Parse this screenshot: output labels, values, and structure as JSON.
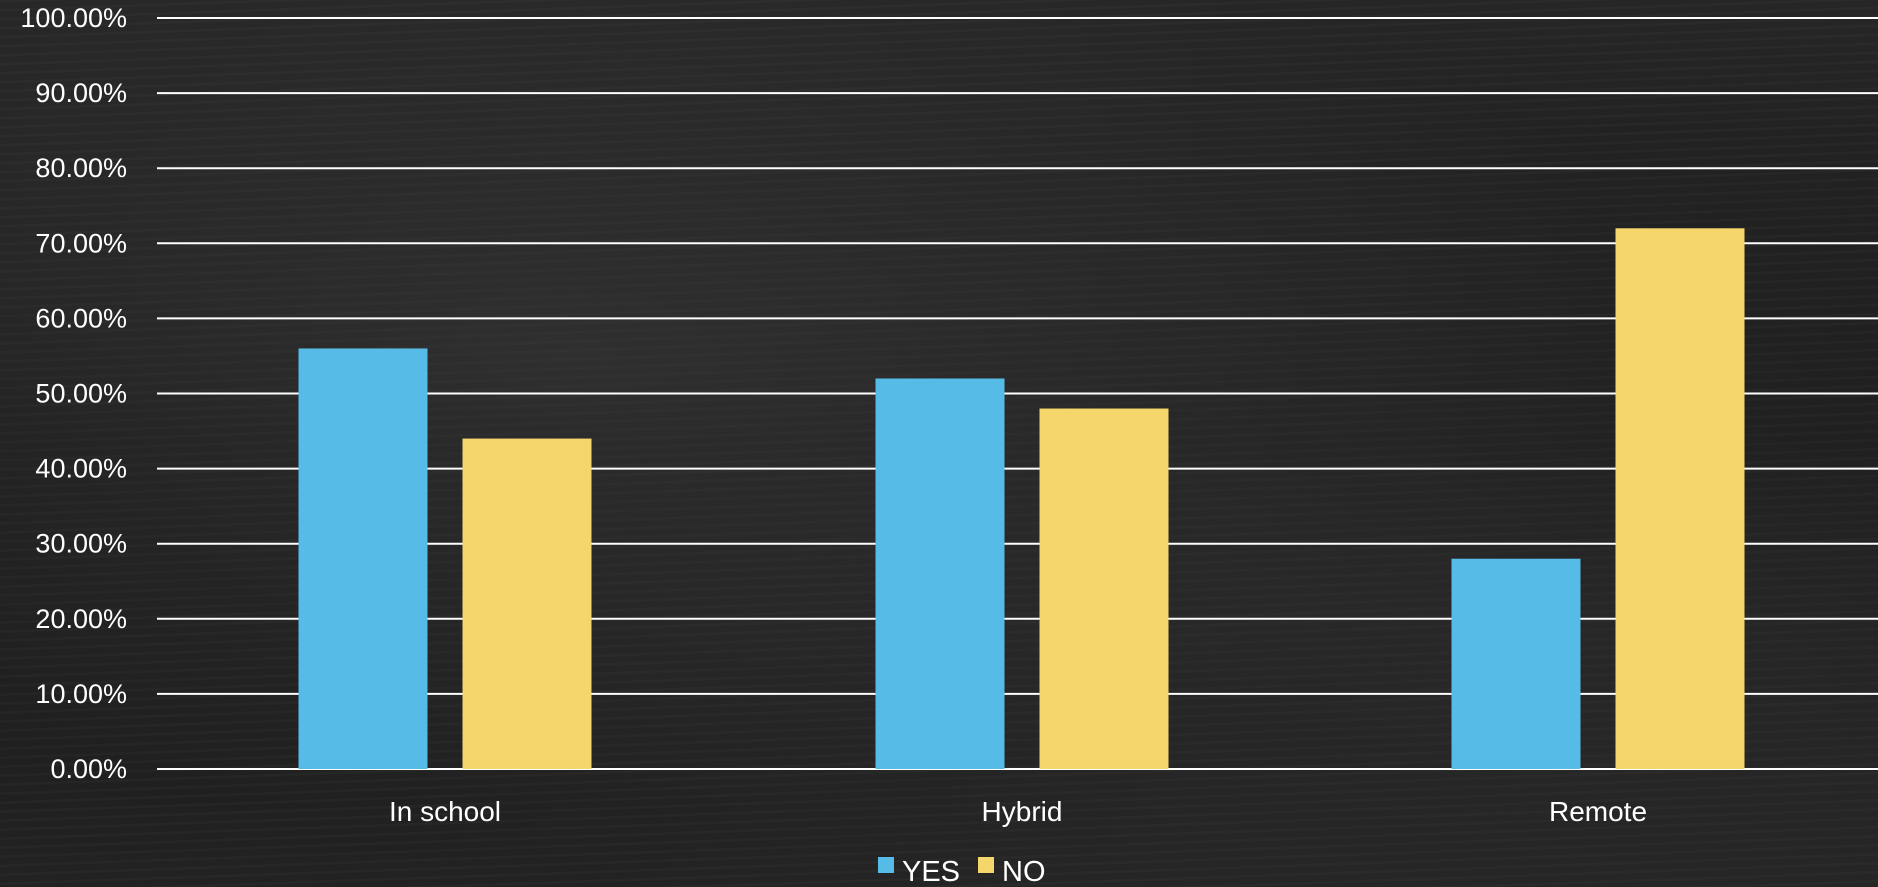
{
  "chart_data": {
    "type": "bar",
    "title": "",
    "xlabel": "",
    "ylabel": "",
    "categories": [
      "In school",
      "Hybrid",
      "Remote"
    ],
    "series": [
      {
        "name": "YES",
        "color": "#56BBE6",
        "values": [
          56,
          52,
          28
        ]
      },
      {
        "name": "NO",
        "color": "#F4D66B",
        "values": [
          44,
          48,
          72
        ]
      }
    ],
    "ylim": [
      0,
      100
    ],
    "yticks": [
      "0.00%",
      "10.00%",
      "20.00%",
      "30.00%",
      "40.00%",
      "50.00%",
      "60.00%",
      "70.00%",
      "80.00%",
      "90.00%",
      "100.00%"
    ],
    "grid": true,
    "legend_position": "bottom",
    "background": "chalkboard",
    "gridline_color": "#ffffff"
  }
}
